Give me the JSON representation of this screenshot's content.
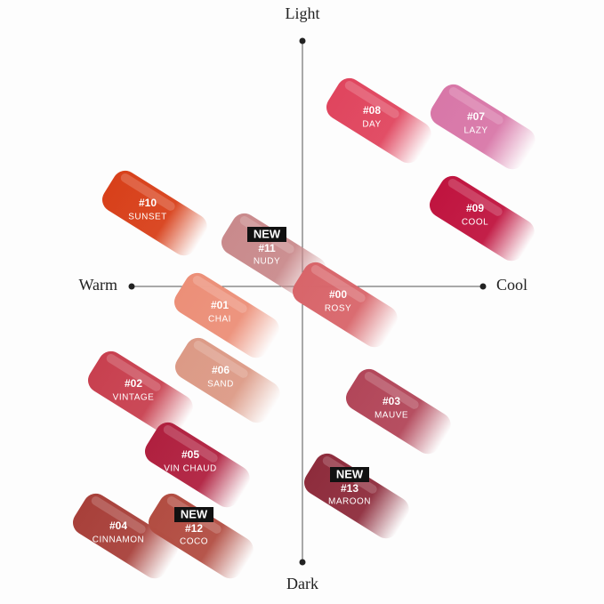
{
  "axes": {
    "top": "Light",
    "bottom": "Dark",
    "left": "Warm",
    "right": "Cool"
  },
  "swatches": [
    {
      "number": "#08",
      "name": "DAY",
      "color": "#e0455e"
    },
    {
      "number": "#07",
      "name": "LAZY",
      "color": "#d877a8"
    },
    {
      "number": "#09",
      "name": "COOL",
      "color": "#c0143f"
    },
    {
      "number": "#10",
      "name": "SUNSET",
      "color": "#d8401a"
    },
    {
      "badge": "NEW",
      "number": "#11",
      "name": "NUDY",
      "color": "#c98a8c"
    },
    {
      "number": "#00",
      "name": "ROSY",
      "color": "#d8656a"
    },
    {
      "number": "#01",
      "name": "CHAI",
      "color": "#ec8f78"
    },
    {
      "number": "#06",
      "name": "SAND",
      "color": "#dc9a86"
    },
    {
      "number": "#02",
      "name": "VINTAGE",
      "color": "#c8404f"
    },
    {
      "number": "#03",
      "name": "MAUVE",
      "color": "#b24659"
    },
    {
      "number": "#05",
      "name": "VIN CHAUD",
      "color": "#b0203f"
    },
    {
      "badge": "NEW",
      "number": "#13",
      "name": "MAROON",
      "color": "#8e2c3c"
    },
    {
      "number": "#04",
      "name": "CINNAMON",
      "color": "#a8403a"
    },
    {
      "badge": "NEW",
      "number": "#12",
      "name": "COCO",
      "color": "#b24d42"
    }
  ]
}
